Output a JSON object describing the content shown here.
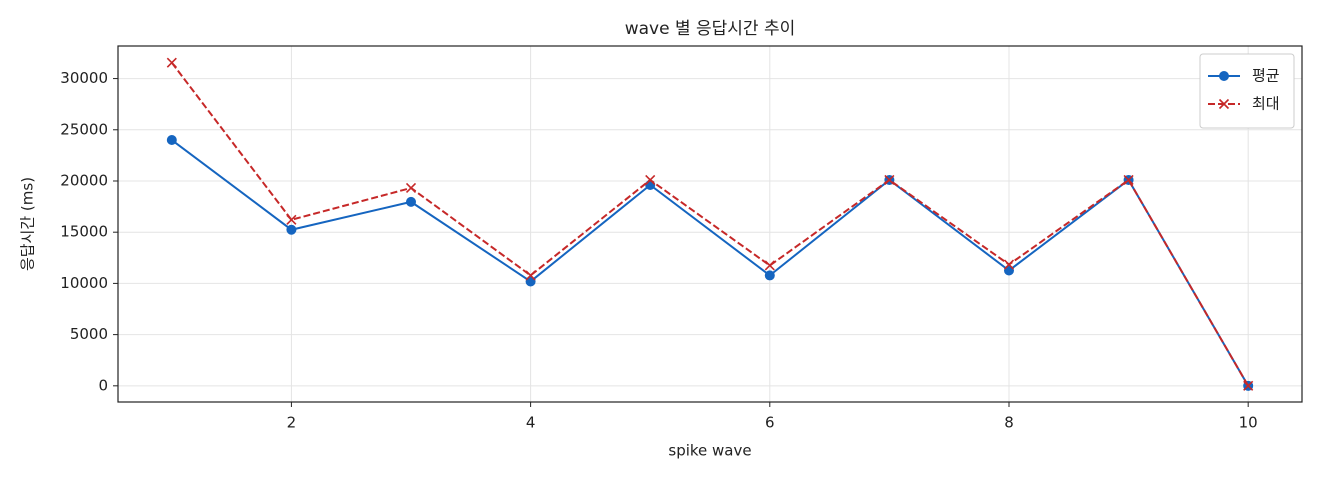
{
  "chart_data": {
    "type": "line",
    "title": "wave 별 응답시간 추이",
    "x_label": "spike wave",
    "y_label": "응답시간 (ms)",
    "x": [
      1,
      2,
      3,
      4,
      5,
      6,
      7,
      8,
      9,
      10
    ],
    "series": [
      {
        "name": "평균",
        "color": "#1565c0",
        "marker": "o",
        "dash": "solid",
        "values": [
          24000,
          15240,
          17960,
          10190,
          19610,
          10780,
          20100,
          11260,
          20100,
          0
        ]
      },
      {
        "name": "최대",
        "color": "#c62828",
        "marker": "x",
        "dash": "dashed",
        "values": [
          31550,
          16210,
          19320,
          10780,
          20100,
          11750,
          20100,
          11840,
          20100,
          0
        ]
      }
    ],
    "xlim": [
      0.55,
      10.45
    ],
    "ylim": [
      -1580,
      33180
    ],
    "xticks": [
      2,
      4,
      6,
      8,
      10
    ],
    "yticks": [
      0,
      5000,
      10000,
      15000,
      20000,
      25000,
      30000
    ],
    "grid": true,
    "legend": "upper right"
  }
}
